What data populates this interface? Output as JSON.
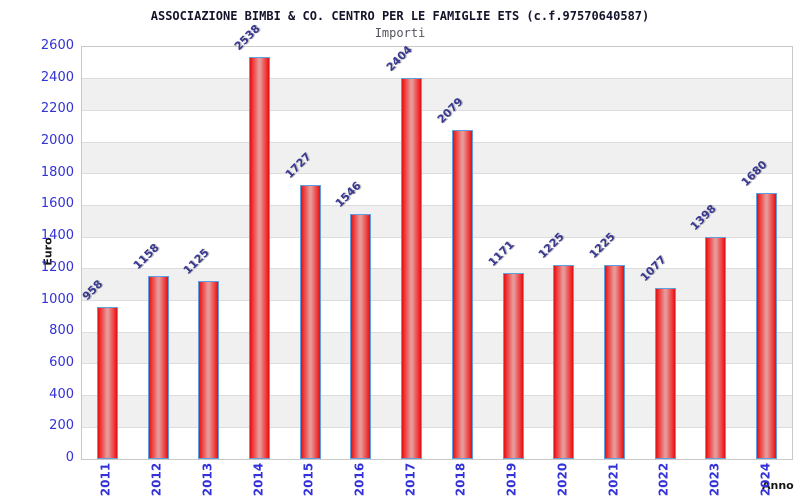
{
  "chart_data": {
    "type": "bar",
    "title": "ASSOCIAZIONE BIMBI & CO. CENTRO PER LE FAMIGLIE ETS (c.f.97570640587)",
    "subtitle": "Importi",
    "xlabel": "Anno",
    "ylabel": "Euro",
    "categories": [
      "2011",
      "2012",
      "2013",
      "2014",
      "2015",
      "2016",
      "2017",
      "2018",
      "2019",
      "2020",
      "2021",
      "2022",
      "2023",
      "2024"
    ],
    "values": [
      958,
      1158,
      1125,
      2538,
      1727,
      1546,
      2404,
      2079,
      1171,
      1225,
      1225,
      1077,
      1398,
      1680
    ],
    "ylim": [
      0,
      2600
    ],
    "ytick_step": 200,
    "grid": true,
    "legend": false,
    "colors": {
      "bar_fill": "#dc1414",
      "bar_highlight": "#e89898",
      "bar_border": "#5f9fdf",
      "tick_label": "#3232d8",
      "value_label": "#383890",
      "band_stripe": "#f0f0f0",
      "gridline": "#dcdcdc",
      "title": "#14142b",
      "subtitle": "#55555f"
    }
  }
}
